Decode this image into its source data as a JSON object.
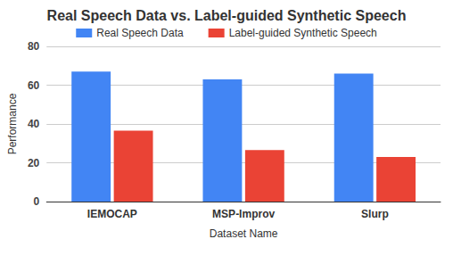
{
  "chart_data": {
    "type": "bar",
    "title": "Real Speech Data vs. Label-guided Synthetic Speech",
    "x_label": "Dataset Name",
    "y_label": "Performance",
    "categories": [
      "IEMOCAP",
      "MSP-Improv",
      "Slurp"
    ],
    "series": [
      {
        "name": "Real Speech Data",
        "color": "#4285f4",
        "values": [
          67,
          63,
          66
        ]
      },
      {
        "name": "Label-guided Synthetic Speech",
        "color": "#ea4335",
        "values": [
          36.5,
          26.5,
          23
        ]
      }
    ],
    "ylim": [
      0,
      80
    ],
    "yticks": [
      0,
      20,
      40,
      60,
      80
    ],
    "grid": true,
    "legend": "top"
  }
}
